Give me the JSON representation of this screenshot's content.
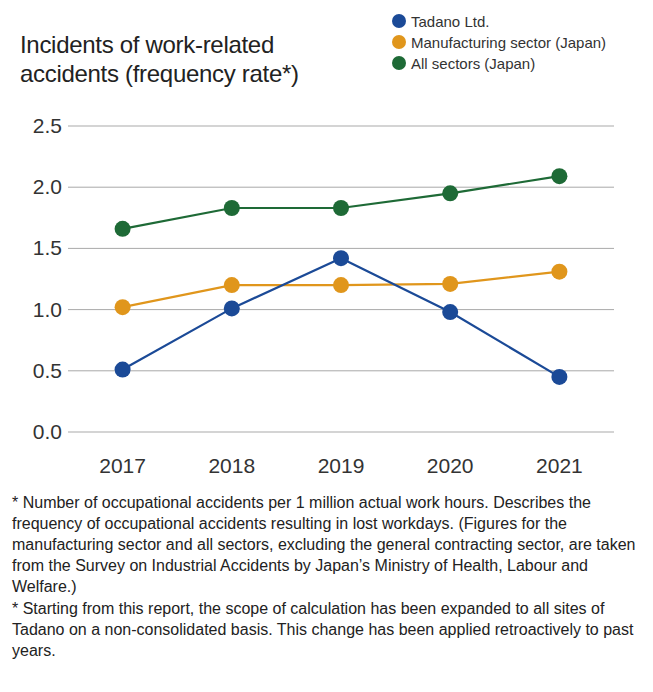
{
  "chart_data": {
    "type": "line",
    "title": "Incidents of work-related accidents (frequency rate*)",
    "categories": [
      "2017",
      "2018",
      "2019",
      "2020",
      "2021"
    ],
    "series": [
      {
        "name": "Tadano Ltd.",
        "color": "#1b4a97",
        "values": [
          0.51,
          1.01,
          1.42,
          0.98,
          0.45
        ]
      },
      {
        "name": "Manufacturing sector (Japan)",
        "color": "#e0961c",
        "values": [
          1.02,
          1.2,
          1.2,
          1.21,
          1.31
        ]
      },
      {
        "name": "All sectors (Japan)",
        "color": "#1e6a36",
        "values": [
          1.66,
          1.83,
          1.83,
          1.95,
          2.09
        ]
      }
    ],
    "ylim": [
      0,
      2.5
    ],
    "yticks": [
      {
        "value": 0,
        "label": "0.0"
      },
      0.5,
      {
        "value": 1,
        "label": "1.0"
      },
      1.5,
      {
        "value": 2,
        "label": "2.0"
      },
      2.5
    ],
    "grid": true,
    "legend": "top-right",
    "marker": "circle",
    "annotations": [
      "* Number of occupational accidents per 1 million actual work hours. Describes the frequency of occupational accidents resulting in lost workdays. (Figures for the manufacturing sector and all sectors, excluding the general contracting sector, are taken from the Survey on Industrial Accidents by Japan’s Ministry of Health, Labour and Welfare.)",
      "* Starting from this report, the scope of calculation has been expanded to all sites of Tadano on a non-consolidated basis. This change has been applied retroactively to past years."
    ]
  }
}
